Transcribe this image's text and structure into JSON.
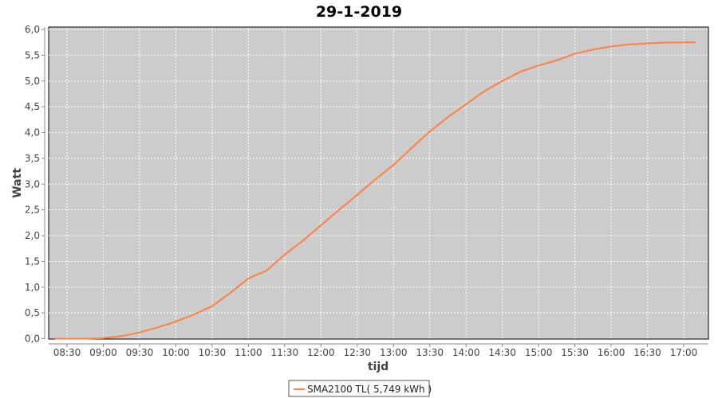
{
  "chart_data": {
    "type": "line",
    "title": "29-1-2019",
    "xlabel": "tijd",
    "ylabel": "Watt",
    "ylim": [
      0,
      6.0
    ],
    "xlim": [
      "08:15",
      "17:20"
    ],
    "grid": true,
    "legend_placement": "bottom",
    "yticks": [
      "0,0",
      "0,5",
      "1,0",
      "1,5",
      "2,0",
      "2,5",
      "3,0",
      "3,5",
      "4,0",
      "4,5",
      "5,0",
      "5,5",
      "6,0"
    ],
    "xticks": [
      "08:30",
      "09:00",
      "09:30",
      "10:00",
      "10:30",
      "11:00",
      "11:30",
      "12:00",
      "12:30",
      "13:00",
      "13:30",
      "14:00",
      "14:30",
      "15:00",
      "15:30",
      "16:00",
      "16:30",
      "17:00"
    ],
    "colors": {
      "series": "#ff8040",
      "plot_background": "#cccccc",
      "grid": "#ffffff"
    },
    "series": [
      {
        "name": "SMA2100 TL( 5,749 kWh )",
        "x": [
          "08:20",
          "08:45",
          "09:00",
          "09:15",
          "09:30",
          "09:45",
          "10:00",
          "10:15",
          "10:30",
          "10:45",
          "11:00",
          "11:15",
          "11:30",
          "11:45",
          "12:00",
          "12:15",
          "12:30",
          "12:45",
          "13:00",
          "13:15",
          "13:30",
          "13:45",
          "14:00",
          "14:15",
          "14:30",
          "14:45",
          "15:00",
          "15:15",
          "15:30",
          "15:45",
          "16:00",
          "16:15",
          "16:30",
          "16:45",
          "17:00",
          "17:10"
        ],
        "values": [
          0.0,
          0.0,
          0.01,
          0.05,
          0.12,
          0.22,
          0.33,
          0.47,
          0.63,
          0.89,
          1.17,
          1.32,
          1.63,
          1.9,
          2.2,
          2.5,
          2.79,
          3.09,
          3.37,
          3.7,
          4.02,
          4.3,
          4.55,
          4.8,
          5.0,
          5.18,
          5.3,
          5.4,
          5.53,
          5.61,
          5.67,
          5.71,
          5.73,
          5.745,
          5.749,
          5.749
        ]
      }
    ]
  }
}
